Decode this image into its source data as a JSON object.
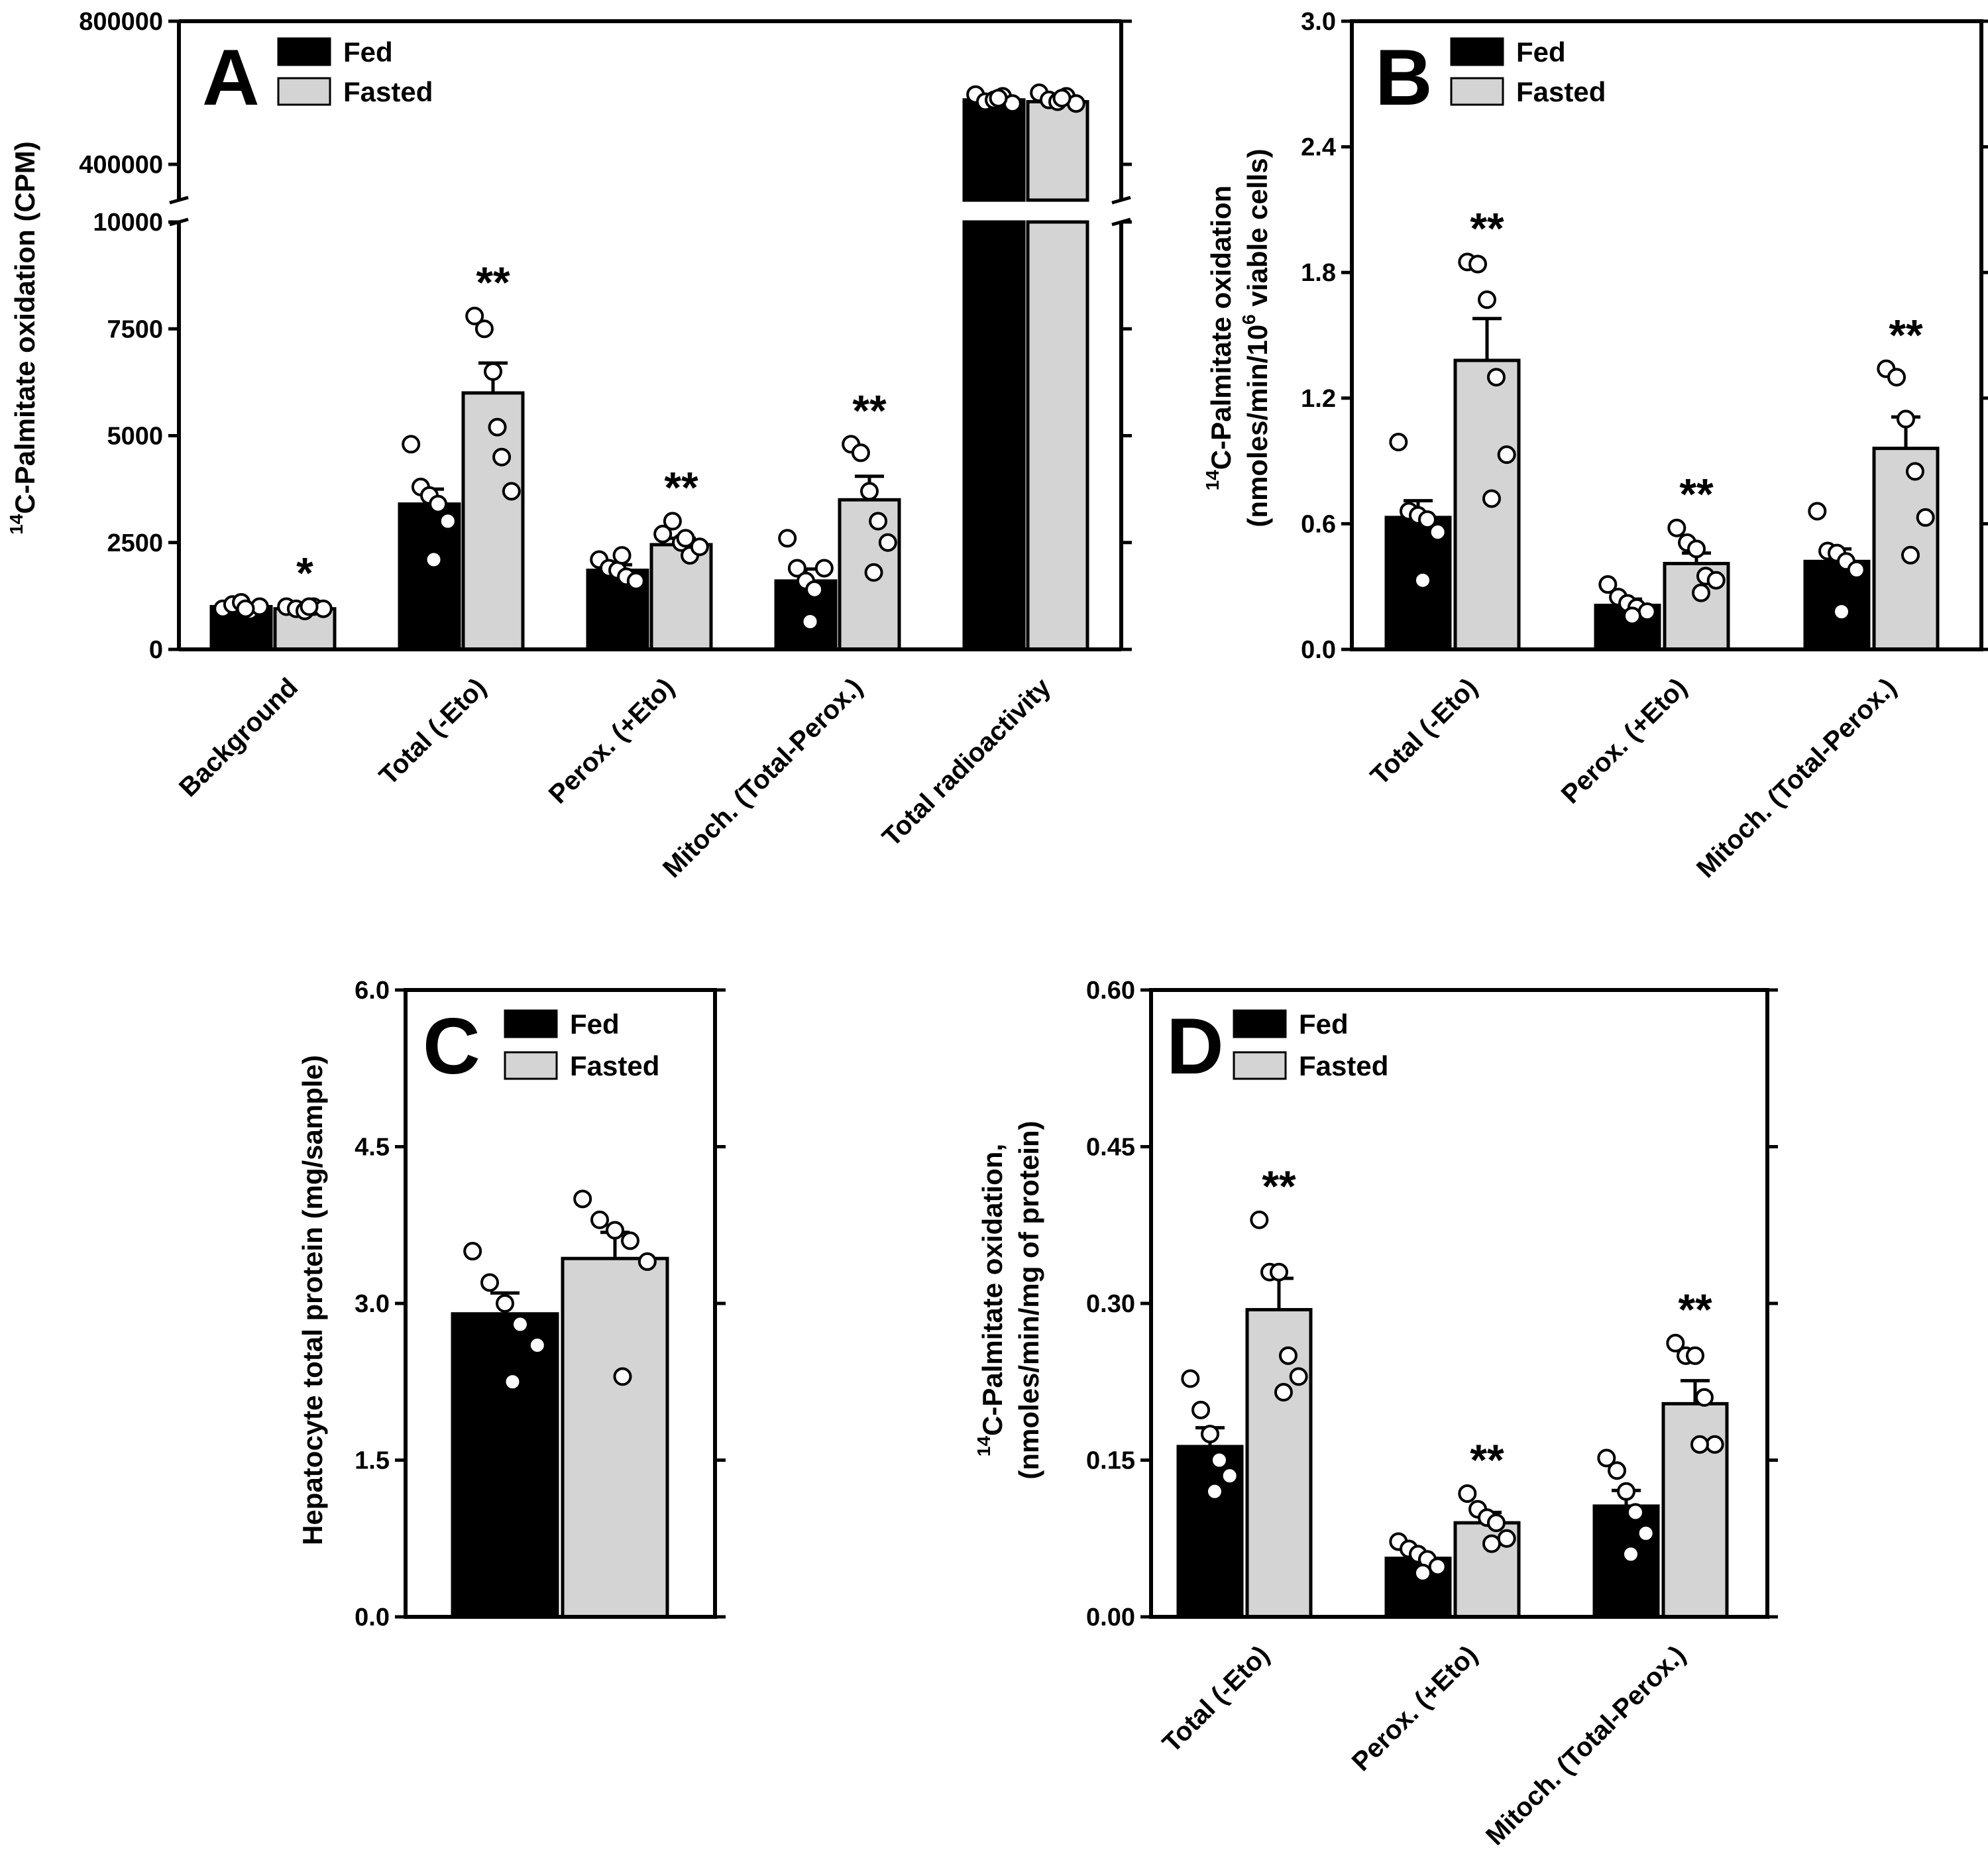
{
  "figure": {
    "legend": {
      "fed": "Fed",
      "fasted": "Fasted"
    },
    "colors": {
      "fed": "#000000",
      "fasted": "#d4d4d4",
      "points": "#ffffff"
    }
  },
  "chart_data": [
    {
      "panel": "A",
      "type": "bar",
      "ylabel_sup": "14",
      "ylabel_main": "C-Palmitate oxidation (CPM)",
      "y_axis": "broken",
      "ylim_lower": [
        0,
        10000
      ],
      "ylim_upper": [
        0,
        800000
      ],
      "yticks_lower": [
        "0",
        "2500",
        "5000",
        "7500",
        "10000"
      ],
      "yticks_upper": [
        "400000",
        "800000"
      ],
      "categories": [
        "Background",
        "Total (-Eto)",
        "Perox. (+Eto)",
        "Mitoch. (Total-Perox.)",
        "Total radioactivity"
      ],
      "legend_position": "top-left",
      "grid": false,
      "series": [
        {
          "name": "Fed",
          "values": [
            1000,
            3400,
            1850,
            1600,
            580000
          ],
          "sem": [
            50,
            350,
            130,
            280,
            8000
          ],
          "points": [
            [
              950,
              1050,
              1100,
              900,
              1000,
              950
            ],
            [
              4800,
              3800,
              3600,
              3400,
              3000,
              2100
            ],
            [
              2100,
              1900,
              1850,
              1700,
              1600,
              2200
            ],
            [
              2600,
              1900,
              1600,
              1400,
              1900,
              650
            ],
            [
              595000,
              575000,
              580000,
              590000,
              570000,
              585000
            ]
          ]
        },
        {
          "name": "Fasted",
          "values": [
            950,
            6000,
            2450,
            3500,
            575000
          ],
          "sem": [
            50,
            700,
            150,
            550,
            8000
          ],
          "points": [
            [
              1000,
              950,
              900,
              1000,
              950,
              1000
            ],
            [
              7800,
              7500,
              6500,
              4500,
              3700,
              5200
            ],
            [
              2700,
              3000,
              2500,
              2200,
              2400,
              2600
            ],
            [
              4800,
              4600,
              3700,
              3000,
              2500,
              1800
            ],
            [
              600000,
              580000,
              575000,
              590000,
              570000,
              585000
            ]
          ]
        }
      ],
      "annotations": [
        "*",
        "**",
        "**",
        "**",
        ""
      ]
    },
    {
      "panel": "B",
      "type": "bar",
      "ylabel_sup1": "14",
      "ylabel_line1": "C-Palmitate oxidation",
      "ylabel_line2_pre": "(nmoles/min/10",
      "ylabel_sup2": "6",
      "ylabel_line2_post": " viable cells)",
      "ylim": [
        0,
        3.0
      ],
      "yticks": [
        "0.0",
        "0.6",
        "1.2",
        "1.8",
        "2.4",
        "3.0"
      ],
      "categories": [
        "Total (-Eto)",
        "Perox. (+Eto)",
        "Mitoch. (Total-Perox.)"
      ],
      "legend_position": "top-left",
      "grid": false,
      "series": [
        {
          "name": "Fed",
          "values": [
            0.63,
            0.21,
            0.42
          ],
          "sem": [
            0.08,
            0.03,
            0.06
          ],
          "points": [
            [
              0.99,
              0.66,
              0.64,
              0.62,
              0.56,
              0.33
            ],
            [
              0.31,
              0.25,
              0.22,
              0.2,
              0.18,
              0.16
            ],
            [
              0.66,
              0.47,
              0.46,
              0.42,
              0.38,
              0.18
            ]
          ]
        },
        {
          "name": "Fasted",
          "values": [
            1.38,
            0.41,
            0.96
          ],
          "sem": [
            0.2,
            0.05,
            0.15
          ],
          "points": [
            [
              1.85,
              1.84,
              1.67,
              1.3,
              0.93,
              0.72
            ],
            [
              0.58,
              0.51,
              0.48,
              0.35,
              0.33,
              0.27
            ],
            [
              1.34,
              1.3,
              1.1,
              0.85,
              0.63,
              0.45
            ]
          ]
        }
      ],
      "annotations": [
        "**",
        "**",
        "**"
      ]
    },
    {
      "panel": "C",
      "type": "bar",
      "ylabel": "Hepatocyte total protein (mg/sample)",
      "ylim": [
        0,
        6.0
      ],
      "yticks": [
        "0.0",
        "1.5",
        "3.0",
        "4.5",
        "6.0"
      ],
      "categories": [
        ""
      ],
      "legend_position": "top-left",
      "grid": false,
      "series": [
        {
          "name": "Fed",
          "values": [
            2.9
          ],
          "sem": [
            0.2
          ],
          "points": [
            [
              3.5,
              3.2,
              3.0,
              2.8,
              2.6,
              2.25
            ]
          ]
        },
        {
          "name": "Fasted",
          "values": [
            3.43
          ],
          "sem": [
            0.25
          ],
          "points": [
            [
              4.0,
              3.8,
              3.7,
              3.6,
              3.4,
              2.3
            ]
          ]
        }
      ],
      "annotations": [
        ""
      ]
    },
    {
      "panel": "D",
      "type": "bar",
      "ylabel_sup1": "14",
      "ylabel_line1": "C-Palmitate oxidation,",
      "ylabel_line2": "(nmoles/min/mg of protein)",
      "ylim": [
        0,
        0.6
      ],
      "yticks": [
        "0.00",
        "0.15",
        "0.30",
        "0.45",
        "0.60"
      ],
      "categories": [
        "Total (-Eto)",
        "Perox. (+Eto)",
        "Mitoch. (Total-Perox.)"
      ],
      "legend_position": "top-left",
      "grid": false,
      "series": [
        {
          "name": "Fed",
          "values": [
            0.163,
            0.056,
            0.106
          ],
          "sem": [
            0.018,
            0.005,
            0.015
          ],
          "points": [
            [
              0.228,
              0.198,
              0.175,
              0.15,
              0.135,
              0.12
            ],
            [
              0.072,
              0.065,
              0.06,
              0.055,
              0.048,
              0.042
            ],
            [
              0.152,
              0.14,
              0.12,
              0.1,
              0.08,
              0.06
            ]
          ]
        },
        {
          "name": "Fasted",
          "values": [
            0.294,
            0.09,
            0.204
          ],
          "sem": [
            0.03,
            0.01,
            0.022
          ],
          "points": [
            [
              0.38,
              0.33,
              0.33,
              0.25,
              0.23,
              0.215
            ],
            [
              0.118,
              0.103,
              0.095,
              0.09,
              0.075,
              0.07
            ],
            [
              0.262,
              0.25,
              0.25,
              0.21,
              0.165,
              0.165
            ]
          ]
        }
      ],
      "annotations": [
        "**",
        "**",
        "**"
      ]
    }
  ]
}
